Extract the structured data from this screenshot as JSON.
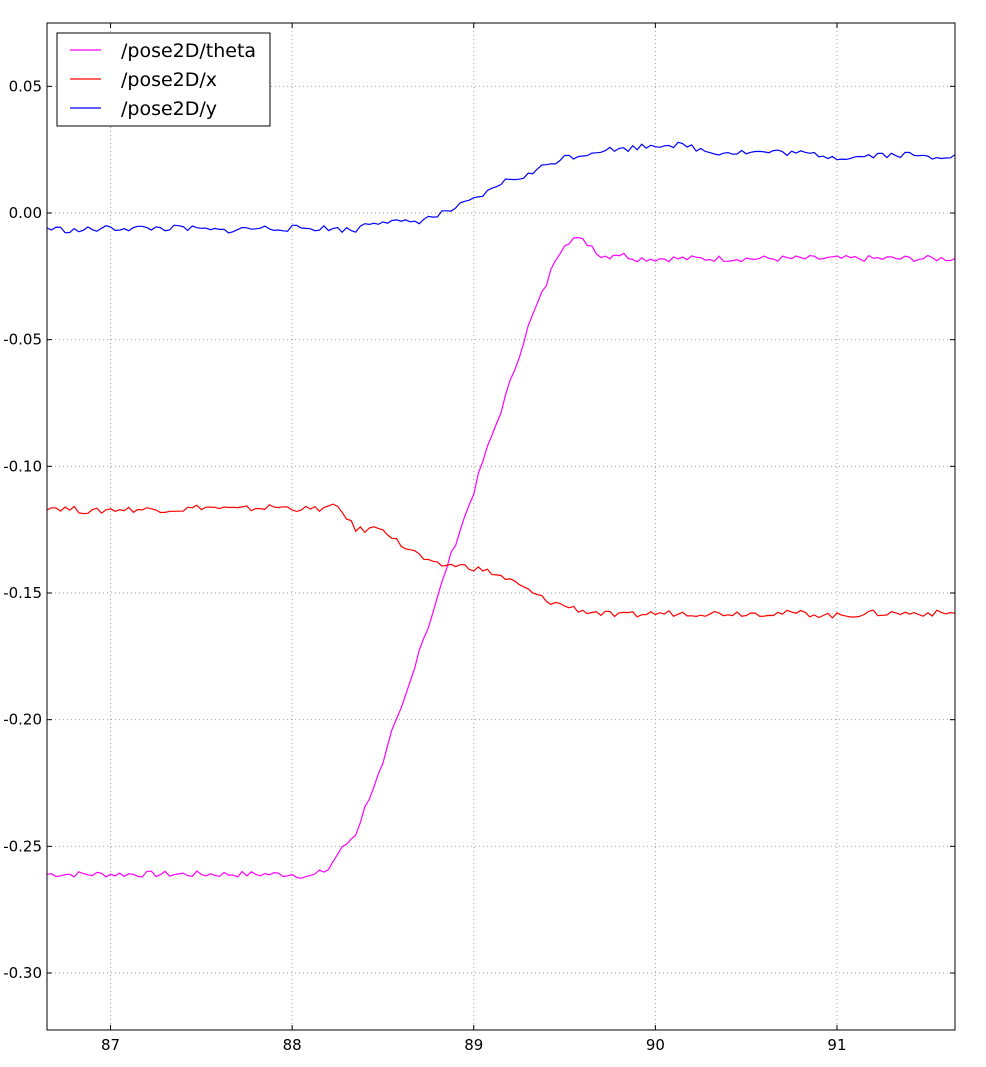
{
  "chart_data": {
    "type": "line",
    "title": "",
    "xlabel": "",
    "ylabel": "",
    "xlim": [
      86.65,
      91.65
    ],
    "ylim": [
      -0.3225,
      0.075
    ],
    "grid": true,
    "legend_position": "top-left",
    "x_ticks": [
      87,
      88,
      89,
      90,
      91
    ],
    "x_tick_labels": [
      "87",
      "88",
      "89",
      "90",
      "91"
    ],
    "y_ticks": [
      0.05,
      0.0,
      -0.05,
      -0.1,
      -0.15,
      -0.2,
      -0.25,
      -0.3
    ],
    "y_tick_labels": [
      "0.05",
      "0.00",
      "-0.05",
      "-0.10",
      "-0.15",
      "-0.20",
      "-0.25",
      "-0.30"
    ],
    "series": [
      {
        "name": "/pose2D/theta",
        "color": "#ff00ff",
        "x": [
          86.65,
          86.8,
          87.0,
          87.2,
          87.4,
          87.6,
          87.8,
          88.0,
          88.1,
          88.2,
          88.25,
          88.3,
          88.35,
          88.4,
          88.45,
          88.5,
          88.55,
          88.6,
          88.65,
          88.7,
          88.75,
          88.8,
          88.85,
          88.9,
          88.95,
          89.0,
          89.05,
          89.1,
          89.15,
          89.2,
          89.25,
          89.3,
          89.35,
          89.4,
          89.45,
          89.5,
          89.55,
          89.6,
          89.65,
          89.7,
          89.75,
          89.78,
          89.85,
          89.9,
          90.0,
          90.2,
          90.5,
          90.8,
          91.1,
          91.4,
          91.65
        ],
        "y": [
          -0.261,
          -0.261,
          -0.261,
          -0.261,
          -0.261,
          -0.261,
          -0.261,
          -0.261,
          -0.262,
          -0.259,
          -0.253,
          -0.249,
          -0.245,
          -0.235,
          -0.226,
          -0.218,
          -0.205,
          -0.196,
          -0.185,
          -0.172,
          -0.163,
          -0.152,
          -0.14,
          -0.13,
          -0.12,
          -0.11,
          -0.098,
          -0.088,
          -0.078,
          -0.067,
          -0.056,
          -0.045,
          -0.036,
          -0.028,
          -0.018,
          -0.012,
          -0.01,
          -0.011,
          -0.013,
          -0.017,
          -0.017,
          -0.016,
          -0.017,
          -0.018,
          -0.018,
          -0.018,
          -0.018,
          -0.018,
          -0.018,
          -0.018,
          -0.018
        ]
      },
      {
        "name": "/pose2D/x",
        "color": "#ff0000",
        "x": [
          86.65,
          86.8,
          86.9,
          87.0,
          87.1,
          87.2,
          87.4,
          87.5,
          87.7,
          87.9,
          88.1,
          88.25,
          88.3,
          88.35,
          88.4,
          88.5,
          88.55,
          88.6,
          88.7,
          88.75,
          88.8,
          88.9,
          89.0,
          89.1,
          89.2,
          89.3,
          89.4,
          89.5,
          89.6,
          89.7,
          89.8,
          90.0,
          90.2,
          90.5,
          90.8,
          91.0,
          91.2,
          91.4,
          91.65
        ],
        "y": [
          -0.116,
          -0.117,
          -0.118,
          -0.117,
          -0.117,
          -0.117,
          -0.117,
          -0.116,
          -0.117,
          -0.116,
          -0.117,
          -0.116,
          -0.12,
          -0.125,
          -0.125,
          -0.124,
          -0.128,
          -0.131,
          -0.135,
          -0.138,
          -0.139,
          -0.139,
          -0.14,
          -0.142,
          -0.145,
          -0.149,
          -0.153,
          -0.155,
          -0.157,
          -0.158,
          -0.159,
          -0.158,
          -0.158,
          -0.158,
          -0.158,
          -0.159,
          -0.158,
          -0.158,
          -0.158
        ]
      },
      {
        "name": "/pose2D/y",
        "color": "#0000ff",
        "x": [
          86.65,
          86.8,
          87.0,
          87.2,
          87.4,
          87.6,
          87.8,
          88.0,
          88.2,
          88.35,
          88.4,
          88.5,
          88.6,
          88.7,
          88.8,
          88.9,
          89.0,
          89.1,
          89.15,
          89.3,
          89.4,
          89.5,
          89.6,
          89.7,
          89.8,
          90.0,
          90.1,
          90.2,
          90.3,
          90.5,
          90.7,
          90.9,
          91.0,
          91.1,
          91.2,
          91.4,
          91.5,
          91.65
        ],
        "y": [
          -0.006,
          -0.007,
          -0.006,
          -0.006,
          -0.006,
          -0.007,
          -0.006,
          -0.006,
          -0.006,
          -0.007,
          -0.004,
          -0.003,
          -0.004,
          -0.003,
          -0.001,
          0.002,
          0.005,
          0.009,
          0.012,
          0.015,
          0.019,
          0.022,
          0.023,
          0.025,
          0.025,
          0.027,
          0.027,
          0.026,
          0.024,
          0.024,
          0.024,
          0.023,
          0.022,
          0.022,
          0.023,
          0.023,
          0.022,
          0.023
        ]
      }
    ]
  }
}
